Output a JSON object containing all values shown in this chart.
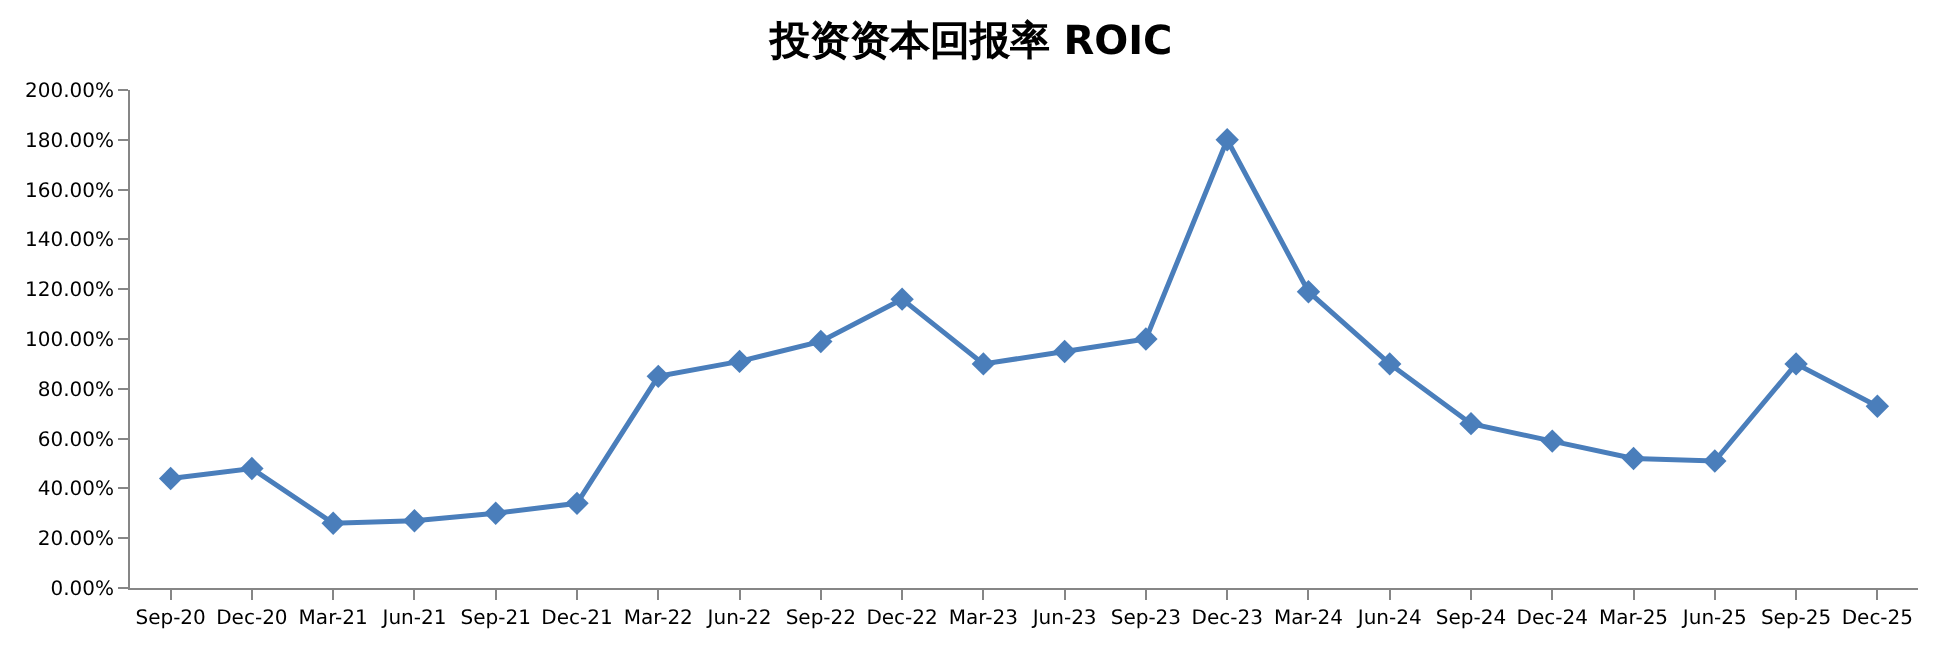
{
  "chart_data": {
    "type": "line",
    "title": "投资资本回报率 ROIC",
    "categories": [
      "Sep-20",
      "Dec-20",
      "Mar-21",
      "Jun-21",
      "Sep-21",
      "Dec-21",
      "Mar-22",
      "Jun-22",
      "Sep-22",
      "Dec-22",
      "Mar-23",
      "Jun-23",
      "Sep-23",
      "Dec-23",
      "Mar-24",
      "Jun-24",
      "Sep-24",
      "Dec-24",
      "Mar-25",
      "Jun-25",
      "Sep-25",
      "Dec-25"
    ],
    "series": [
      {
        "color": "#4a7ebb",
        "values": [
          44,
          48,
          26,
          27,
          30,
          34,
          85,
          91,
          99,
          116,
          90,
          95,
          100,
          180,
          119,
          90,
          66,
          59,
          52,
          51,
          90,
          73
        ]
      }
    ],
    "ylim": [
      0,
      200
    ],
    "yticks": [
      {
        "value": 0,
        "label": "0.00%"
      },
      {
        "value": 20,
        "label": "20.00%"
      },
      {
        "value": 40,
        "label": "40.00%"
      },
      {
        "value": 60,
        "label": "60.00%"
      },
      {
        "value": 80,
        "label": "80.00%"
      },
      {
        "value": 100,
        "label": "100.00%"
      },
      {
        "value": 120,
        "label": "120.00%"
      },
      {
        "value": 140,
        "label": "140.00%"
      },
      {
        "value": 160,
        "label": "160.00%"
      },
      {
        "value": 180,
        "label": "180.00%"
      },
      {
        "value": 200,
        "label": "200.00%"
      }
    ],
    "marker": "diamond",
    "line_style": "solid"
  }
}
